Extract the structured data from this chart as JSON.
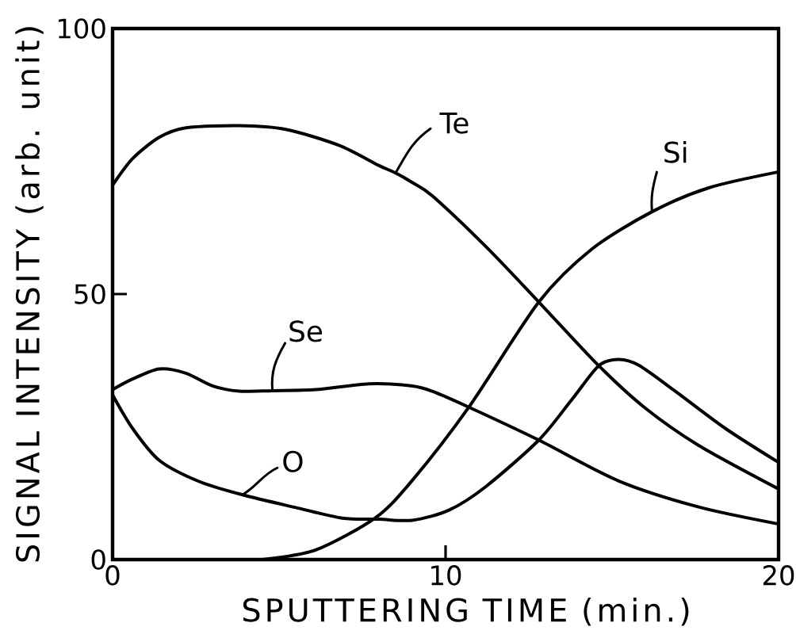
{
  "chart_data": {
    "type": "line",
    "xlabel": "SPUTTERING TIME (min.)",
    "ylabel": "SIGNAL INTENSITY (arb. unit)",
    "xlim": [
      0,
      20
    ],
    "ylim": [
      0,
      100
    ],
    "xticks": [
      0,
      10,
      20
    ],
    "yticks": [
      0,
      50,
      100
    ],
    "marker": "none",
    "line_style": "solid",
    "series": [
      {
        "name": "Te",
        "color": "#000000",
        "x": [
          0,
          0.6,
          1.4,
          2.2,
          3.8,
          5.2,
          6.8,
          8,
          8.5,
          9,
          9.6,
          11.2,
          12.8,
          14.6,
          16,
          17.6,
          20
        ],
        "values": [
          70.5,
          75.5,
          79.5,
          81.3,
          81.7,
          81,
          78,
          74.2,
          72.8,
          71,
          68.5,
          59,
          48.5,
          36.5,
          28.5,
          21.5,
          13.3
        ]
      },
      {
        "name": "Si",
        "color": "#000000",
        "x": [
          4.5,
          6.1,
          7.9,
          9,
          10.7,
          12.8,
          14.4,
          16.2,
          17.9,
          20
        ],
        "values": [
          0,
          1.8,
          7.9,
          14.9,
          28.7,
          48.5,
          58.5,
          65.5,
          70,
          73
        ]
      },
      {
        "name": "Se",
        "color": "#000000",
        "x": [
          0,
          0.6,
          1.4,
          2.2,
          3,
          3.8,
          4.8,
          6.1,
          7.7,
          9,
          9.6,
          10.7,
          12.8,
          15.2,
          17.6,
          20
        ],
        "values": [
          32,
          34,
          35.9,
          35.1,
          32.7,
          31.7,
          31.8,
          32,
          33.1,
          32.7,
          31.7,
          28.7,
          22.5,
          14.8,
          9.9,
          6.7
        ]
      },
      {
        "name": "O",
        "color": "#000000",
        "x": [
          0,
          0.6,
          1.4,
          2.6,
          3.9,
          5.5,
          6.9,
          8,
          9,
          10.1,
          11.2,
          12.8,
          13.8,
          14.6,
          15.2,
          15.8,
          16.9,
          18.4,
          20
        ],
        "values": [
          31,
          24.7,
          18.7,
          14.7,
          12.2,
          9.8,
          7.8,
          7.6,
          7.4,
          9.3,
          13.7,
          22.5,
          30.2,
          36.5,
          37.7,
          36.6,
          31.7,
          24.7,
          18.3
        ]
      }
    ]
  }
}
